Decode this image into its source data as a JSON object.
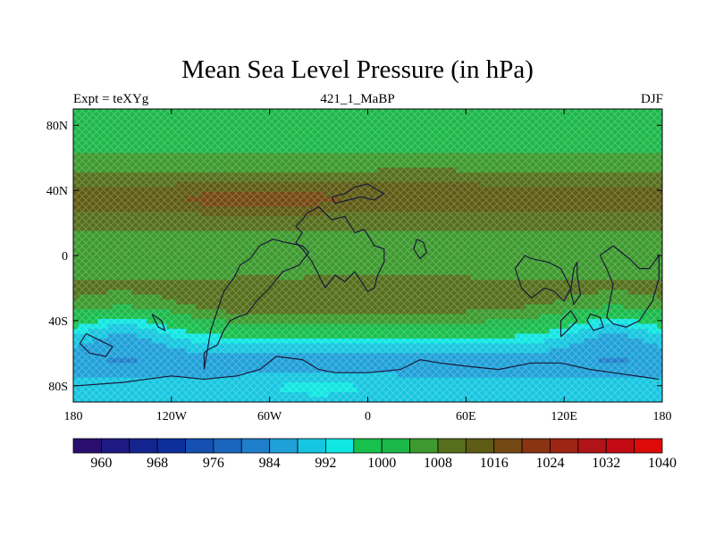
{
  "title": "Mean Sea Level Pressure (in hPa)",
  "subtitle_left": "Expt = teXYg",
  "subtitle_center": "421_1_MaBP",
  "subtitle_right": "DJF",
  "lat_ticks": [
    {
      "value": 80,
      "label": "80N"
    },
    {
      "value": 40,
      "label": "40N"
    },
    {
      "value": 0,
      "label": "0"
    },
    {
      "value": -40,
      "label": "40S"
    },
    {
      "value": -80,
      "label": "80S"
    }
  ],
  "lon_ticks": [
    {
      "value": -180,
      "label": "180"
    },
    {
      "value": -120,
      "label": "120W"
    },
    {
      "value": -60,
      "label": "60W"
    },
    {
      "value": 0,
      "label": "0"
    },
    {
      "value": 60,
      "label": "60E"
    },
    {
      "value": 120,
      "label": "120E"
    },
    {
      "value": 180,
      "label": "180"
    }
  ],
  "colorbar": {
    "colors": [
      "#2a0f6e",
      "#1e1a84",
      "#14248f",
      "#0c2f9c",
      "#1350b0",
      "#1a66be",
      "#1f7fcc",
      "#1fa0d8",
      "#16c6e0",
      "#10e6e2",
      "#18c04e",
      "#1cb84a",
      "#3d9a2e",
      "#556f1c",
      "#5e5b14",
      "#744812",
      "#8a3412",
      "#9e2414",
      "#b01418",
      "#c40a14",
      "#dd0a0a"
    ],
    "labels": [
      "960",
      "968",
      "976",
      "984",
      "992",
      "1000",
      "1008",
      "1016",
      "1024",
      "1032",
      "1040"
    ]
  },
  "chart_data": {
    "type": "heatmap",
    "title": "Mean Sea Level Pressure (in hPa)",
    "variable_unit": "hPa",
    "season": "DJF",
    "experiment": "teXYg",
    "xlim": [
      -180,
      180
    ],
    "ylim": [
      -90,
      90
    ],
    "contour_levels": [
      960,
      964,
      968,
      972,
      976,
      980,
      984,
      988,
      992,
      996,
      1000,
      1004,
      1008,
      1012,
      1016,
      1020,
      1024,
      1028,
      1032,
      1036,
      1040
    ],
    "lat_profile": [
      {
        "lat": 90,
        "hPa": 1002
      },
      {
        "lat": 80,
        "hPa": 1001
      },
      {
        "lat": 70,
        "hPa": 1002
      },
      {
        "lat": 60,
        "hPa": 1005
      },
      {
        "lat": 52,
        "hPa": 1008
      },
      {
        "lat": 45,
        "hPa": 1011
      },
      {
        "lat": 40,
        "hPa": 1013
      },
      {
        "lat": 34,
        "hPa": 1014
      },
      {
        "lat": 28,
        "hPa": 1012
      },
      {
        "lat": 20,
        "hPa": 1009
      },
      {
        "lat": 10,
        "hPa": 1007
      },
      {
        "lat": 0,
        "hPa": 1006
      },
      {
        "lat": -10,
        "hPa": 1007
      },
      {
        "lat": -20,
        "hPa": 1009
      },
      {
        "lat": -30,
        "hPa": 1009
      },
      {
        "lat": -40,
        "hPa": 1004
      },
      {
        "lat": -50,
        "hPa": 996
      },
      {
        "lat": -60,
        "hPa": 988
      },
      {
        "lat": -66,
        "hPa": 985
      },
      {
        "lat": -72,
        "hPa": 987
      },
      {
        "lat": -80,
        "hPa": 989
      },
      {
        "lat": -90,
        "hPa": 990
      }
    ],
    "anomalies": [
      {
        "lon": -65,
        "lat": 34,
        "amp": 6,
        "rx": 45,
        "ry": 8
      },
      {
        "lon": -150,
        "lat": -45,
        "amp": -10,
        "rx": 35,
        "ry": 15
      },
      {
        "lon": 150,
        "lat": -45,
        "amp": -10,
        "rx": 35,
        "ry": 15
      },
      {
        "lon": 15,
        "lat": -30,
        "amp": 3,
        "rx": 50,
        "ry": 14
      },
      {
        "lon": -75,
        "lat": -30,
        "amp": 2,
        "rx": 30,
        "ry": 12
      },
      {
        "lon": -30,
        "lat": -80,
        "amp": 4,
        "rx": 45,
        "ry": 8
      },
      {
        "lon": 30,
        "lat": 42,
        "amp": 2,
        "rx": 30,
        "ry": 8
      }
    ]
  }
}
